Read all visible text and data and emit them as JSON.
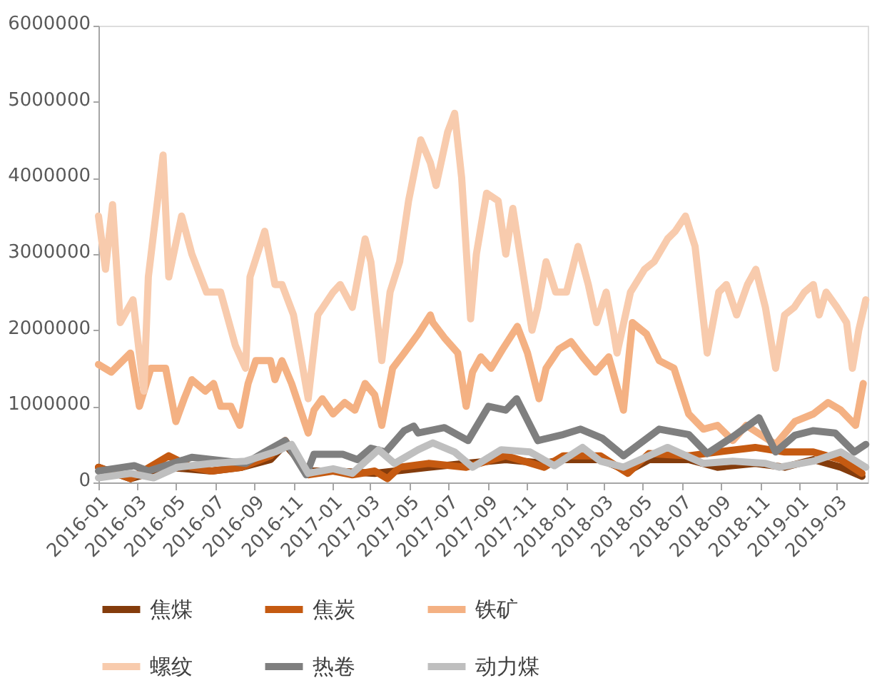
{
  "chart_data": {
    "type": "line",
    "legend": "bottom",
    "grid": false,
    "line_style": "solid",
    "marker": "none",
    "xlim": [
      "2016-01-01",
      "2019-04-18"
    ],
    "xticks": [
      {
        "value": "2016-01-01",
        "label": "2016-01"
      },
      {
        "value": "2016-03-01",
        "label": "2016-03"
      },
      {
        "value": "2016-05-01",
        "label": "2016-05"
      },
      {
        "value": "2016-07-01",
        "label": "2016-07"
      },
      {
        "value": "2016-09-01",
        "label": "2016-09"
      },
      {
        "value": "2016-11-01",
        "label": "2016-11"
      },
      {
        "value": "2017-01-01",
        "label": "2017-01"
      },
      {
        "value": "2017-03-01",
        "label": "2017-03"
      },
      {
        "value": "2017-05-01",
        "label": "2017-05"
      },
      {
        "value": "2017-07-01",
        "label": "2017-07"
      },
      {
        "value": "2017-09-01",
        "label": "2017-09"
      },
      {
        "value": "2017-11-01",
        "label": "2017-11"
      },
      {
        "value": "2018-01-01",
        "label": "2018-01"
      },
      {
        "value": "2018-03-01",
        "label": "2018-03"
      },
      {
        "value": "2018-05-01",
        "label": "2018-05"
      },
      {
        "value": "2018-07-01",
        "label": "2018-07"
      },
      {
        "value": "2018-09-01",
        "label": "2018-09"
      },
      {
        "value": "2018-11-01",
        "label": "2018-11"
      },
      {
        "value": "2019-01-01",
        "label": "2019-01"
      },
      {
        "value": "2019-03-01",
        "label": "2019-03"
      }
    ],
    "ylim": [
      0,
      6000000
    ],
    "yticks": [
      0,
      1000000,
      2000000,
      3000000,
      4000000,
      5000000,
      6000000
    ],
    "series": [
      {
        "name": "焦煤",
        "color": "#843c0c",
        "x": [
          "2016-01-01",
          "2016-02-20",
          "2016-04-20",
          "2016-06-26",
          "2016-08-12",
          "2016-09-26",
          "2016-10-19",
          "2016-11-24",
          "2017-01-02",
          "2017-03-08",
          "2017-05-31",
          "2017-07-29",
          "2017-09-29",
          "2017-11-28",
          "2017-12-28",
          "2018-02-24",
          "2018-04-08",
          "2018-05-11",
          "2018-07-12",
          "2018-08-26",
          "2018-10-24",
          "2018-12-09",
          "2019-01-23",
          "2019-03-07",
          "2019-04-09"
        ],
        "values": [
          200000,
          50000,
          200000,
          150000,
          200000,
          300000,
          500000,
          150000,
          150000,
          120000,
          200000,
          250000,
          300000,
          250000,
          300000,
          300000,
          150000,
          300000,
          300000,
          200000,
          250000,
          200000,
          300000,
          200000,
          80000
        ]
      },
      {
        "name": "焦炭",
        "color": "#c55a11",
        "x": [
          "2016-01-01",
          "2016-02-20",
          "2016-04-20",
          "2016-05-26",
          "2016-06-26",
          "2016-08-12",
          "2016-09-26",
          "2016-10-19",
          "2016-11-24",
          "2017-01-02",
          "2017-02-01",
          "2017-03-08",
          "2017-03-28",
          "2017-04-16",
          "2017-05-31",
          "2017-07-29",
          "2017-09-29",
          "2017-11-28",
          "2017-12-28",
          "2018-02-24",
          "2018-04-08",
          "2018-05-11",
          "2018-07-12",
          "2018-08-26",
          "2018-10-24",
          "2018-12-09",
          "2019-01-23",
          "2019-03-07",
          "2019-04-09"
        ],
        "values": [
          200000,
          50000,
          350000,
          200000,
          150000,
          200000,
          350000,
          550000,
          100000,
          150000,
          100000,
          150000,
          50000,
          200000,
          250000,
          200000,
          350000,
          200000,
          350000,
          350000,
          120000,
          380000,
          350000,
          400000,
          460000,
          400000,
          400000,
          300000,
          120000
        ]
      },
      {
        "name": "铁矿",
        "color": "#f4b183",
        "x": [
          "2016-01-01",
          "2016-01-21",
          "2016-02-20",
          "2016-03-05",
          "2016-03-23",
          "2016-04-15",
          "2016-05-01",
          "2016-05-14",
          "2016-05-26",
          "2016-06-16",
          "2016-06-29",
          "2016-07-10",
          "2016-07-26",
          "2016-08-09",
          "2016-08-22",
          "2016-09-03",
          "2016-09-26",
          "2016-10-03",
          "2016-10-14",
          "2016-10-29",
          "2016-11-24",
          "2016-12-03",
          "2016-12-16",
          "2017-01-02",
          "2017-01-20",
          "2017-02-05",
          "2017-02-21",
          "2017-03-08",
          "2017-03-19",
          "2017-04-05",
          "2017-04-23",
          "2017-05-15",
          "2017-06-03",
          "2017-06-07",
          "2017-06-25",
          "2017-07-16",
          "2017-07-29",
          "2017-08-08",
          "2017-08-21",
          "2017-09-06",
          "2017-09-24",
          "2017-10-17",
          "2017-11-02",
          "2017-11-20",
          "2017-12-01",
          "2017-12-21",
          "2018-01-09",
          "2018-01-27",
          "2018-02-16",
          "2018-03-09",
          "2018-04-01",
          "2018-04-15",
          "2018-05-07",
          "2018-05-27",
          "2018-06-19",
          "2018-07-12",
          "2018-08-04",
          "2018-08-26",
          "2018-09-19",
          "2018-10-10",
          "2018-11-25",
          "2018-12-25",
          "2019-01-23",
          "2019-02-15",
          "2019-03-07",
          "2019-03-30",
          "2019-04-11"
        ],
        "values": [
          1550000,
          1450000,
          1700000,
          1000000,
          1500000,
          1500000,
          800000,
          1100000,
          1350000,
          1200000,
          1300000,
          1000000,
          1000000,
          750000,
          1300000,
          1600000,
          1600000,
          1350000,
          1600000,
          1300000,
          650000,
          950000,
          1100000,
          900000,
          1050000,
          950000,
          1300000,
          1150000,
          750000,
          1500000,
          1700000,
          1950000,
          2200000,
          2100000,
          1900000,
          1700000,
          1000000,
          1450000,
          1650000,
          1500000,
          1750000,
          2050000,
          1700000,
          1100000,
          1500000,
          1750000,
          1850000,
          1650000,
          1450000,
          1650000,
          950000,
          2100000,
          1950000,
          1600000,
          1500000,
          900000,
          700000,
          750000,
          550000,
          750000,
          500000,
          800000,
          900000,
          1050000,
          950000,
          750000,
          1300000
        ]
      },
      {
        "name": "螺纹",
        "color": "#f8cbad",
        "x": [
          "2016-01-01",
          "2016-01-12",
          "2016-01-23",
          "2016-02-04",
          "2016-02-24",
          "2016-03-12",
          "2016-03-19",
          "2016-04-11",
          "2016-04-20",
          "2016-05-10",
          "2016-05-26",
          "2016-06-18",
          "2016-07-10",
          "2016-08-02",
          "2016-08-18",
          "2016-08-25",
          "2016-09-17",
          "2016-10-03",
          "2016-10-14",
          "2016-11-01",
          "2016-11-24",
          "2016-12-09",
          "2017-01-02",
          "2017-01-13",
          "2017-02-01",
          "2017-02-21",
          "2017-03-02",
          "2017-03-19",
          "2017-04-01",
          "2017-04-16",
          "2017-04-30",
          "2017-05-19",
          "2017-06-03",
          "2017-06-12",
          "2017-06-30",
          "2017-07-11",
          "2017-07-22",
          "2017-08-05",
          "2017-08-14",
          "2017-08-30",
          "2017-09-17",
          "2017-09-29",
          "2017-10-10",
          "2017-10-25",
          "2017-11-09",
          "2017-11-18",
          "2017-12-01",
          "2017-12-16",
          "2018-01-02",
          "2018-01-20",
          "2018-02-05",
          "2018-02-18",
          "2018-03-05",
          "2018-03-16",
          "2018-03-22",
          "2018-04-12",
          "2018-05-04",
          "2018-05-19",
          "2018-06-09",
          "2018-06-21",
          "2018-07-07",
          "2018-07-22",
          "2018-08-10",
          "2018-08-28",
          "2018-09-09",
          "2018-09-25",
          "2018-10-12",
          "2018-10-25",
          "2018-11-09",
          "2018-11-25",
          "2018-12-09",
          "2018-12-24",
          "2019-01-09",
          "2019-01-23",
          "2019-02-01",
          "2019-02-12",
          "2019-03-01",
          "2019-03-16",
          "2019-03-25",
          "2019-04-04",
          "2019-04-15"
        ],
        "values": [
          3500000,
          2800000,
          3650000,
          2100000,
          2400000,
          1200000,
          2700000,
          4300000,
          2700000,
          3500000,
          3000000,
          2500000,
          2500000,
          1800000,
          1500000,
          2700000,
          3300000,
          2600000,
          2600000,
          2200000,
          1100000,
          2200000,
          2500000,
          2600000,
          2300000,
          3200000,
          2900000,
          1600000,
          2500000,
          2900000,
          3700000,
          4500000,
          4200000,
          3900000,
          4600000,
          4850000,
          4000000,
          2150000,
          3000000,
          3800000,
          3700000,
          3000000,
          3600000,
          2800000,
          2000000,
          2300000,
          2900000,
          2500000,
          2500000,
          3100000,
          2600000,
          2100000,
          2500000,
          2000000,
          1700000,
          2500000,
          2800000,
          2900000,
          3200000,
          3300000,
          3500000,
          3100000,
          1700000,
          2500000,
          2600000,
          2200000,
          2600000,
          2800000,
          2300000,
          1500000,
          2200000,
          2300000,
          2500000,
          2600000,
          2200000,
          2500000,
          2300000,
          2100000,
          1500000,
          2000000,
          2400000
        ]
      },
      {
        "name": "热卷",
        "color": "#7f7f7f",
        "x": [
          "2016-01-01",
          "2016-02-26",
          "2016-03-19",
          "2016-05-26",
          "2016-08-18",
          "2016-09-17",
          "2016-10-19",
          "2016-11-21",
          "2016-12-03",
          "2017-01-17",
          "2017-02-09",
          "2017-03-02",
          "2017-03-25",
          "2017-04-23",
          "2017-05-08",
          "2017-05-15",
          "2017-06-25",
          "2017-08-01",
          "2017-09-02",
          "2017-09-29",
          "2017-10-16",
          "2017-11-18",
          "2017-12-28",
          "2018-01-24",
          "2018-02-27",
          "2018-04-01",
          "2018-05-27",
          "2018-07-12",
          "2018-08-10",
          "2018-09-19",
          "2018-10-30",
          "2018-11-25",
          "2018-12-25",
          "2019-01-23",
          "2019-02-26",
          "2019-03-28",
          "2019-04-15"
        ],
        "values": [
          150000,
          220000,
          150000,
          330000,
          250000,
          400000,
          550000,
          100000,
          370000,
          370000,
          300000,
          450000,
          400000,
          680000,
          740000,
          650000,
          720000,
          550000,
          1000000,
          950000,
          1100000,
          550000,
          630000,
          700000,
          580000,
          350000,
          700000,
          630000,
          380000,
          600000,
          850000,
          400000,
          620000,
          680000,
          650000,
          400000,
          500000
        ]
      },
      {
        "name": "动力煤",
        "color": "#bfbfbf",
        "x": [
          "2016-01-01",
          "2016-02-20",
          "2016-03-27",
          "2016-05-03",
          "2016-06-26",
          "2016-08-18",
          "2016-10-03",
          "2016-10-29",
          "2016-11-24",
          "2017-01-02",
          "2017-02-01",
          "2017-03-14",
          "2017-04-08",
          "2017-05-15",
          "2017-06-07",
          "2017-07-11",
          "2017-08-08",
          "2017-09-22",
          "2017-11-06",
          "2017-12-14",
          "2018-01-27",
          "2018-02-24",
          "2018-04-01",
          "2018-06-09",
          "2018-08-04",
          "2018-09-19",
          "2018-11-09",
          "2018-12-01",
          "2019-01-23",
          "2019-03-07",
          "2019-04-15"
        ],
        "values": [
          60000,
          120000,
          60000,
          200000,
          250000,
          280000,
          400000,
          500000,
          120000,
          180000,
          120000,
          430000,
          250000,
          430000,
          520000,
          400000,
          200000,
          430000,
          400000,
          220000,
          460000,
          280000,
          200000,
          460000,
          250000,
          280000,
          250000,
          200000,
          280000,
          400000,
          200000
        ]
      }
    ]
  }
}
